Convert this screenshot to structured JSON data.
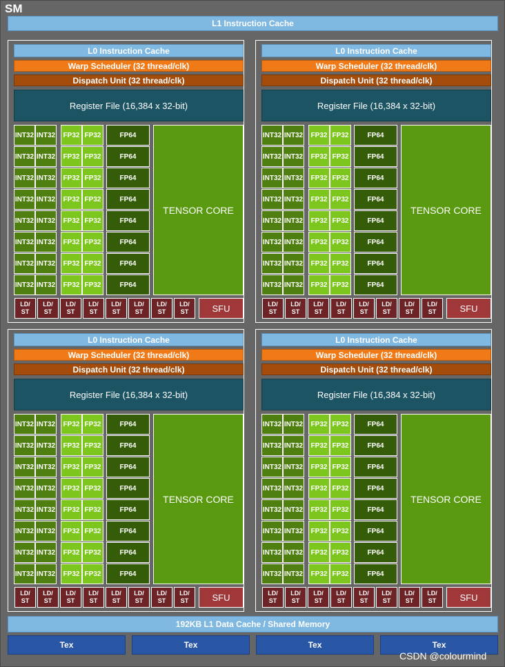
{
  "sm_label": "SM",
  "l1_instruction_cache": "L1 Instruction Cache",
  "l1_data_cache": "192KB L1 Data Cache / Shared Memory",
  "tex_units": [
    "Tex",
    "Tex",
    "Tex",
    "Tex"
  ],
  "watermark": "CSDN @colourmind",
  "partition": {
    "l0_cache": "L0 Instruction Cache",
    "warp_scheduler": "Warp Scheduler (32 thread/clk)",
    "dispatch_unit": "Dispatch Unit (32 thread/clk)",
    "register_file": "Register File (16,384 x 32-bit)",
    "int32_label": "INT32",
    "fp32_label": "FP32",
    "fp64_label": "FP64",
    "tensor_core": "TENSOR CORE",
    "ldst_label": [
      "LD/",
      "ST"
    ],
    "sfu_label": "SFU",
    "unit_rows": 8,
    "ldst_count": 8
  },
  "colors": {
    "int32": "#4f7f10",
    "fp32": "#7cc61e",
    "fp64": "#355c08",
    "tensor": "#5a9a10",
    "ldst": "#6e2426",
    "sfu": "#a0383a",
    "warp": "#f07a18",
    "dispatch": "#a44c0c",
    "register_file": "#1c5464",
    "cache": "#7fb8e0",
    "tex": "#2a56a6"
  }
}
